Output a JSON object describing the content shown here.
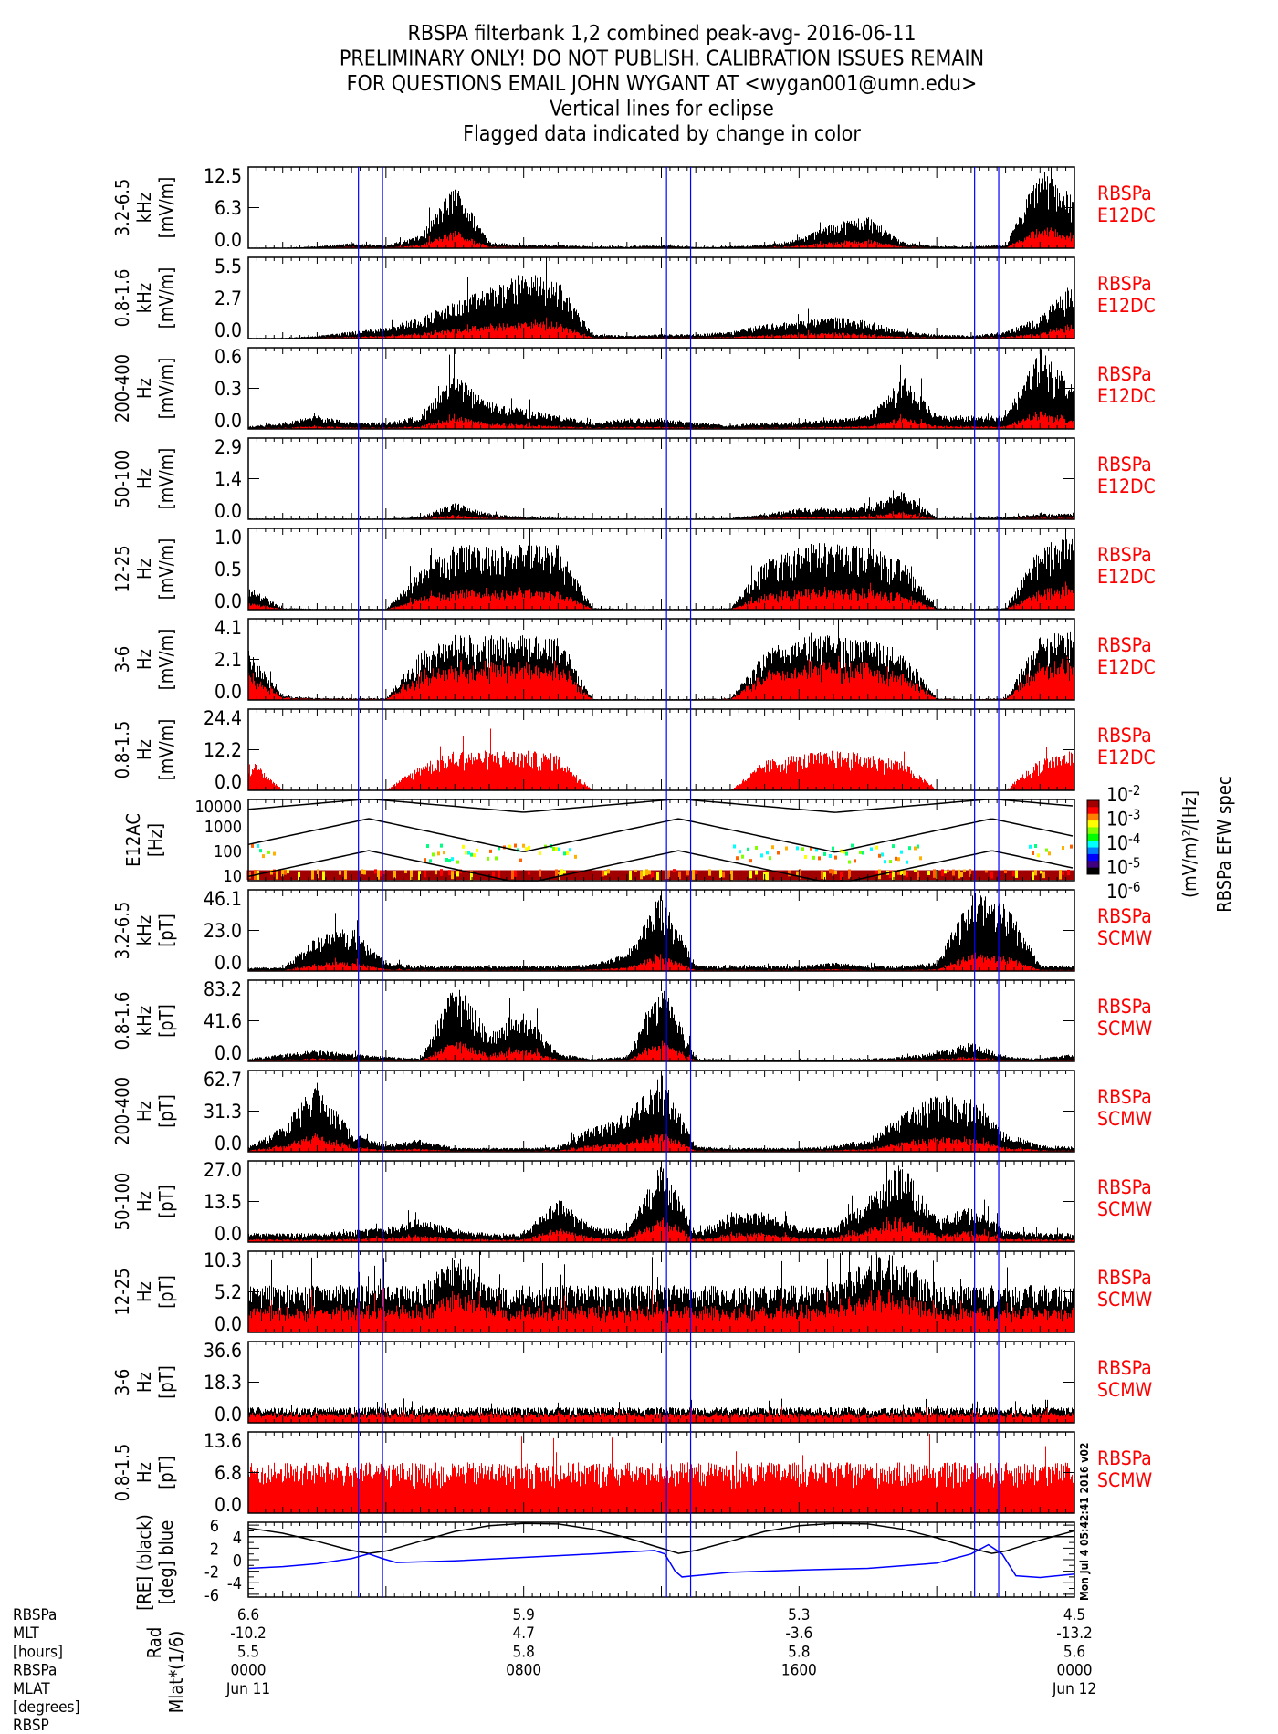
{
  "title_lines": [
    "RBSPA filterbank 1,2 combined peak-avg- 2016-06-11",
    "PRELIMINARY ONLY! DO NOT PUBLISH. CALIBRATION ISSUES REMAIN",
    "FOR QUESTIONS EMAIL JOHN WYGANT AT <wygan001@umn.edu>",
    "Vertical lines for eclipse",
    "Flagged data indicated by change in color"
  ],
  "colors": {
    "peak": "#000000",
    "flagged_avg": "#ff0000",
    "eclipse": "#0000ff",
    "mlat": "#0000ff",
    "rad": "#000000"
  },
  "run_stamp": "Mon Jul  4 05:42:41 2016 v02",
  "chart_data": {
    "type": "line",
    "x_unit": "hours UT",
    "xlim": [
      0,
      24
    ],
    "eclipse_hours": [
      3.2,
      3.9,
      12.15,
      12.85,
      21.1,
      21.8
    ],
    "panels": [
      {
        "ylabel": [
          "3.2-6.5",
          "kHz",
          "[mV/m]"
        ],
        "ticks": [
          "12.5",
          "6.3",
          "0.0"
        ],
        "ymax": 12.5,
        "inst": [
          "RBSPa",
          "E12DC"
        ],
        "hourly_peak": [
          0.1,
          0.1,
          0.3,
          0.8,
          0.5,
          2,
          10,
          1,
          0.5,
          0.5,
          0.3,
          0.3,
          0.5,
          0.2,
          0.3,
          0.5,
          1.5,
          4,
          5,
          1,
          0.3,
          0.3,
          0.5,
          12.5,
          8
        ]
      },
      {
        "ylabel": [
          "0.8-1.6",
          "kHz",
          "[mV/m]"
        ],
        "ticks": [
          "5.5",
          "2.7",
          "0.0"
        ],
        "ymax": 5.5,
        "inst": [
          "RBSPa",
          "E12DC"
        ],
        "hourly_peak": [
          0.05,
          0.05,
          0.2,
          0.5,
          0.8,
          1.5,
          2.5,
          3.5,
          4.5,
          4.0,
          0.3,
          0.2,
          0.3,
          0.3,
          0.5,
          1,
          1.2,
          1.5,
          1.2,
          0.5,
          0.3,
          0.2,
          0.5,
          1.5,
          4
        ]
      },
      {
        "ylabel": [
          "200-400",
          "Hz",
          "[mV/m]"
        ],
        "ticks": [
          "0.6",
          "0.3",
          "0.0"
        ],
        "ymax": 0.6,
        "inst": [
          "RBSPa",
          "E12DC"
        ],
        "hourly_peak": [
          0.02,
          0.05,
          0.1,
          0.05,
          0.05,
          0.1,
          0.4,
          0.2,
          0.15,
          0.1,
          0.05,
          0.08,
          0.08,
          0.05,
          0.03,
          0.05,
          0.05,
          0.08,
          0.1,
          0.4,
          0.1,
          0.1,
          0.1,
          0.6,
          0.3
        ]
      },
      {
        "ylabel": [
          "50-100",
          "Hz",
          "[mV/m]"
        ],
        "ticks": [
          "2.9",
          "1.4",
          "0.0"
        ],
        "ymax": 2.9,
        "inst": [
          "RBSPa",
          "E12DC"
        ],
        "hourly_peak": [
          0.03,
          0.03,
          0.03,
          0.03,
          0.03,
          0.1,
          0.6,
          0.2,
          0.1,
          0.05,
          0.03,
          0.03,
          0.03,
          0.03,
          0.05,
          0.2,
          0.4,
          0.4,
          0.5,
          1.0,
          0.05,
          0.05,
          0.1,
          0.2,
          0.2
        ]
      },
      {
        "ylabel": [
          "12-25",
          "Hz",
          "[mV/m]"
        ],
        "ticks": [
          "1.0",
          "0.5",
          "0.0"
        ],
        "ymax": 1.0,
        "inst": [
          "RBSPa",
          "E12DC"
        ],
        "hourly_peak": [
          0.3,
          0.02,
          0.01,
          0.01,
          0.01,
          0.5,
          0.8,
          0.8,
          0.8,
          0.8,
          0.02,
          0.01,
          0.01,
          0.01,
          0.02,
          0.6,
          0.8,
          0.85,
          0.8,
          0.6,
          0.02,
          0.01,
          0.02,
          0.8,
          0.9
        ]
      },
      {
        "ylabel": [
          "3-6",
          "Hz",
          "[mV/m]"
        ],
        "ticks": [
          "4.1",
          "2.1",
          "0.0"
        ],
        "ymax": 4.1,
        "inst": [
          "RBSPa",
          "E12DC"
        ],
        "hourly_peak": [
          2.5,
          0.2,
          0.1,
          0.1,
          0.1,
          2.5,
          3.3,
          3.3,
          3.3,
          3.3,
          0.05,
          0.05,
          0.05,
          0.05,
          0.1,
          2.5,
          3.2,
          3.3,
          3.1,
          2.5,
          0.1,
          0.05,
          0.1,
          3.3,
          3.6
        ]
      },
      {
        "ylabel": [
          "0.8-1.5",
          "Hz",
          "[mV/m]"
        ],
        "ticks": [
          "24.4",
          "12.2",
          "0.0"
        ],
        "ymax": 24.4,
        "inst": [
          "RBSPa",
          "E12DC"
        ],
        "hourly_peak": [
          10,
          0.2,
          0.1,
          0.1,
          0.1,
          8,
          12,
          12,
          12,
          11,
          0.05,
          0.05,
          0.05,
          0.05,
          0.1,
          9,
          11,
          12,
          11,
          9,
          0.1,
          0.05,
          0.1,
          10,
          12
        ]
      },
      {
        "type": "heatmap",
        "ylabel": [
          "E12AC",
          "[Hz]"
        ],
        "ticks": [
          "10000",
          "1000",
          "100",
          "10"
        ],
        "ylim_hz": [
          6,
          12000
        ],
        "yscale": "log",
        "colorbar": {
          "label": [
            "(mV/m)²/[Hz]",
            "RBSPa EFW spec"
          ],
          "ticks": [
            "10",
            "10",
            "10",
            "10",
            "10"
          ],
          "exponents": [
            "-2",
            "-3",
            "-4",
            "-5",
            "-6"
          ]
        }
      },
      {
        "ylabel": [
          "3.2-6.5",
          "kHz",
          "[pT]"
        ],
        "ticks": [
          "46.1",
          "23.0",
          "0.0"
        ],
        "ymax": 46.1,
        "inst": [
          "RBSPa",
          "SCMW"
        ],
        "hourly_peak": [
          2,
          2,
          20,
          25,
          5,
          3,
          3,
          3,
          3,
          3,
          4,
          10,
          46,
          3,
          3,
          3,
          3,
          5,
          3,
          3,
          5,
          46,
          40,
          3,
          3
        ]
      },
      {
        "ylabel": [
          "0.8-1.6",
          "kHz",
          "[pT]"
        ],
        "ticks": [
          "83.2",
          "41.6",
          "0.0"
        ],
        "ymax": 83.2,
        "inst": [
          "RBSPa",
          "SCMW"
        ],
        "hourly_peak": [
          3,
          8,
          12,
          8,
          5,
          3,
          83,
          30,
          50,
          8,
          3,
          5,
          83,
          3,
          2,
          2,
          2,
          2,
          3,
          5,
          10,
          20,
          5,
          3,
          8
        ]
      },
      {
        "ylabel": [
          "200-400",
          "Hz",
          "[pT]"
        ],
        "ticks": [
          "62.7",
          "31.3",
          "0.0"
        ],
        "ymax": 62.7,
        "inst": [
          "RBSPa",
          "SCMW"
        ],
        "hourly_peak": [
          4,
          20,
          55,
          15,
          6,
          10,
          3,
          3,
          3,
          4,
          20,
          30,
          60,
          4,
          3,
          3,
          3,
          5,
          10,
          30,
          45,
          40,
          15,
          5,
          4
        ]
      },
      {
        "ylabel": [
          "50-100",
          "Hz",
          "[pT]"
        ],
        "ticks": [
          "27.0",
          "13.5",
          "0.0"
        ],
        "ymax": 27.0,
        "inst": [
          "RBSPa",
          "SCMW"
        ],
        "hourly_peak": [
          3,
          3,
          3,
          4,
          5,
          8,
          4,
          3,
          3,
          15,
          5,
          4,
          27,
          3,
          10,
          10,
          5,
          5,
          15,
          27,
          8,
          12,
          4,
          3,
          3
        ]
      },
      {
        "ylabel": [
          "12-25",
          "Hz",
          "[pT]"
        ],
        "ticks": [
          "10.3",
          "5.2",
          "0.0"
        ],
        "ymax": 10.3,
        "inst": [
          "RBSPa",
          "SCMW"
        ],
        "hourly_peak": [
          6,
          6,
          6,
          6,
          6,
          6,
          10,
          6,
          6,
          6,
          6,
          6,
          6,
          6,
          6,
          6,
          6,
          6,
          10,
          10,
          6,
          6,
          6,
          6,
          6
        ]
      },
      {
        "ylabel": [
          "3-6",
          "Hz",
          "[pT]"
        ],
        "ticks": [
          "36.6",
          "18.3",
          "0.0"
        ],
        "ymax": 36.6,
        "inst": [
          "RBSPa",
          "SCMW"
        ],
        "hourly_peak": [
          7,
          7,
          7,
          7,
          7,
          7,
          7,
          7,
          7,
          7,
          7,
          7,
          7,
          7,
          7,
          7,
          7,
          7,
          7,
          7,
          7,
          7,
          7,
          7,
          7
        ]
      },
      {
        "ylabel": [
          "0.8-1.5",
          "Hz",
          "[pT]"
        ],
        "ticks": [
          "13.6",
          "6.8",
          "0.0"
        ],
        "ymax": 13.6,
        "inst": [
          "RBSPa",
          "SCMW"
        ],
        "hourly_peak": [
          8.5,
          8.5,
          8.5,
          8.5,
          8.5,
          8.5,
          8.5,
          8.5,
          8.5,
          8.5,
          8.5,
          8.5,
          8.5,
          8.5,
          8.5,
          8.5,
          8.5,
          8.5,
          8.5,
          8.5,
          8.5,
          8.5,
          8.5,
          8.5,
          8.5
        ]
      }
    ],
    "ephemeris": {
      "ylabel_rad": [
        "Rad",
        "[RE] (black)"
      ],
      "ylabel_mlat": [
        "Mlat*(1/6)",
        "[deg] blue"
      ],
      "ticks": [
        "6",
        "4",
        "2",
        "0",
        "-2",
        "-4",
        "-6"
      ],
      "ylim": [
        -6.5,
        6.5
      ],
      "reference_line": 4,
      "rad_points": [
        [
          0,
          5.5
        ],
        [
          1,
          4.6
        ],
        [
          2,
          3.2
        ],
        [
          3,
          1.6
        ],
        [
          3.5,
          1.1
        ],
        [
          4,
          1.5
        ],
        [
          5,
          3.2
        ],
        [
          6,
          4.9
        ],
        [
          7,
          5.9
        ],
        [
          8,
          6.3
        ],
        [
          9,
          6.2
        ],
        [
          10,
          5.3
        ],
        [
          11,
          3.8
        ],
        [
          12,
          2.0
        ],
        [
          12.5,
          1.1
        ],
        [
          13,
          1.6
        ],
        [
          14,
          3.2
        ],
        [
          15,
          4.9
        ],
        [
          16,
          5.9
        ],
        [
          17,
          6.3
        ],
        [
          18,
          6.2
        ],
        [
          19,
          5.3
        ],
        [
          20,
          3.8
        ],
        [
          21,
          2.0
        ],
        [
          21.6,
          1.1
        ],
        [
          22,
          1.5
        ],
        [
          23,
          3.4
        ],
        [
          24,
          5.0
        ]
      ],
      "mlat_points": [
        [
          0,
          -1.5
        ],
        [
          1,
          -1.2
        ],
        [
          2,
          -0.7
        ],
        [
          3,
          0.2
        ],
        [
          3.5,
          1.0
        ],
        [
          3.9,
          0.2
        ],
        [
          4.3,
          -0.5
        ],
        [
          6,
          -0.2
        ],
        [
          8,
          0.4
        ],
        [
          10,
          1.0
        ],
        [
          11.8,
          1.6
        ],
        [
          12.1,
          1.0
        ],
        [
          12.4,
          -2.0
        ],
        [
          12.6,
          -3.0
        ],
        [
          14,
          -2.2
        ],
        [
          16,
          -1.8
        ],
        [
          18,
          -1.5
        ],
        [
          20,
          -0.6
        ],
        [
          21,
          1.0
        ],
        [
          21.5,
          2.6
        ],
        [
          21.9,
          1.0
        ],
        [
          22.3,
          -2.8
        ],
        [
          23,
          -3.1
        ],
        [
          24,
          -2.5
        ]
      ]
    },
    "bottom_axis": {
      "row_labels": [
        "RBSPa",
        "MLT",
        "[hours]",
        "RBSPa",
        "MLAT",
        "[degrees]",
        "RBSP"
      ],
      "columns": [
        {
          "hour": 0,
          "values": [
            "6.6",
            "-10.2",
            "5.5",
            "0000",
            "Jun 11"
          ]
        },
        {
          "hour": 8,
          "values": [
            "5.9",
            "4.7",
            "5.8",
            "0800",
            ""
          ]
        },
        {
          "hour": 16,
          "values": [
            "5.3",
            "-3.6",
            "5.8",
            "1600",
            ""
          ]
        },
        {
          "hour": 24,
          "values": [
            "4.5",
            "-13.2",
            "5.6",
            "0000",
            "Jun 12"
          ]
        }
      ]
    }
  }
}
